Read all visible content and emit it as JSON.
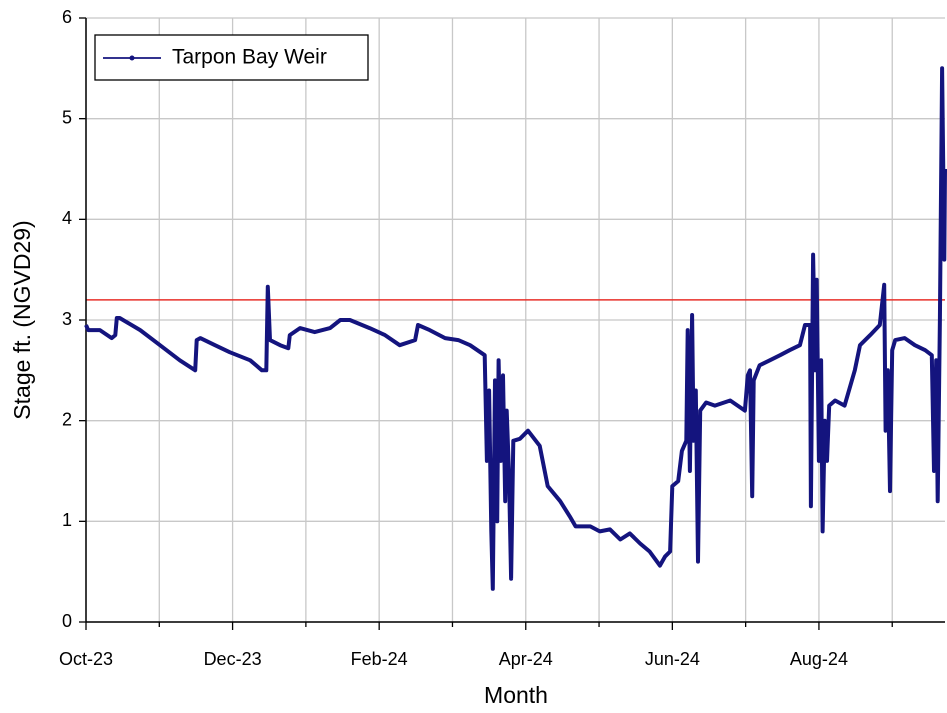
{
  "chart_data": {
    "type": "line",
    "x_label": "Month",
    "y_label": "Stage ft. (NGVD29)",
    "xlim": [
      0,
      11.72
    ],
    "xticks": [
      {
        "value": 0,
        "label": "Oct-23"
      },
      {
        "value": 2,
        "label": "Dec-23"
      },
      {
        "value": 4,
        "label": "Feb-24"
      },
      {
        "value": 6,
        "label": "Apr-24"
      },
      {
        "value": 8,
        "label": "Jun-24"
      },
      {
        "value": 10,
        "label": "Aug-24"
      }
    ],
    "xminor": [
      1,
      3,
      5,
      7,
      9,
      11
    ],
    "ylim": [
      0,
      6
    ],
    "yticks": [
      0,
      1,
      2,
      3,
      4,
      5,
      6
    ],
    "grid": true,
    "legend": "upper left",
    "reference_line": {
      "value": 3.2,
      "color": "#e8302a"
    },
    "series": [
      {
        "name": "Tarpon Bay Weir",
        "color": "#14147e",
        "x": [
          0,
          0.03,
          0.19,
          0.35,
          0.4,
          0.42,
          0.46,
          0.74,
          1.01,
          1.28,
          1.49,
          1.51,
          1.56,
          1.76,
          1.96,
          2.24,
          2.4,
          2.46,
          2.48,
          2.51,
          2.65,
          2.76,
          2.78,
          2.92,
          3.12,
          3.33,
          3.47,
          3.6,
          3.87,
          4.08,
          4.28,
          4.49,
          4.53,
          4.69,
          4.9,
          5.08,
          5.24,
          5.44,
          5.47,
          5.5,
          5.53,
          5.55,
          5.58,
          5.61,
          5.63,
          5.66,
          5.69,
          5.72,
          5.74,
          5.77,
          5.8,
          5.83,
          5.92,
          6.03,
          6.19,
          6.3,
          6.47,
          6.6,
          6.68,
          6.74,
          6.88,
          7.01,
          7.15,
          7.29,
          7.42,
          7.56,
          7.69,
          7.83,
          7.9,
          7.97,
          8.0,
          8.08,
          8.13,
          8.19,
          8.21,
          8.24,
          8.27,
          8.29,
          8.32,
          8.35,
          8.38,
          8.46,
          8.58,
          8.79,
          8.99,
          9.03,
          9.06,
          9.09,
          9.11,
          9.19,
          9.33,
          9.47,
          9.6,
          9.74,
          9.81,
          9.88,
          9.89,
          9.92,
          9.95,
          9.97,
          10.0,
          10.03,
          10.05,
          10.08,
          10.11,
          10.14,
          10.22,
          10.35,
          10.49,
          10.56,
          10.7,
          10.83,
          10.89,
          10.91,
          10.94,
          10.97,
          11.0,
          11.04,
          11.17,
          11.31,
          11.45,
          11.54,
          11.57,
          11.6,
          11.62,
          11.65,
          11.68,
          11.71,
          11.72
        ],
        "values": [
          2.95,
          2.9,
          2.9,
          2.82,
          2.85,
          3.02,
          3.02,
          2.9,
          2.75,
          2.6,
          2.5,
          2.8,
          2.82,
          2.75,
          2.68,
          2.6,
          2.5,
          2.5,
          3.33,
          2.8,
          2.75,
          2.72,
          2.85,
          2.92,
          2.88,
          2.92,
          3.0,
          3.0,
          2.92,
          2.85,
          2.75,
          2.8,
          2.95,
          2.9,
          2.82,
          2.8,
          2.75,
          2.65,
          1.6,
          2.3,
          0.9,
          0.33,
          2.4,
          1.0,
          2.6,
          1.6,
          2.45,
          1.2,
          2.1,
          1.5,
          0.43,
          1.8,
          1.82,
          1.9,
          1.75,
          1.35,
          1.2,
          1.05,
          0.95,
          0.95,
          0.95,
          0.9,
          0.92,
          0.82,
          0.88,
          0.78,
          0.7,
          0.56,
          0.65,
          0.7,
          1.35,
          1.4,
          1.7,
          1.8,
          2.9,
          1.5,
          3.05,
          1.8,
          2.3,
          0.6,
          2.1,
          2.18,
          2.15,
          2.2,
          2.1,
          2.45,
          2.5,
          1.25,
          2.4,
          2.55,
          2.6,
          2.65,
          2.7,
          2.75,
          2.95,
          2.95,
          1.15,
          3.65,
          2.5,
          3.4,
          1.6,
          2.6,
          0.9,
          2.0,
          1.6,
          2.15,
          2.2,
          2.15,
          2.5,
          2.75,
          2.85,
          2.95,
          3.35,
          1.9,
          2.5,
          1.3,
          2.7,
          2.8,
          2.82,
          2.75,
          2.7,
          2.65,
          1.5,
          2.6,
          1.2,
          3.0,
          5.5,
          3.6,
          4.5
        ]
      }
    ]
  }
}
